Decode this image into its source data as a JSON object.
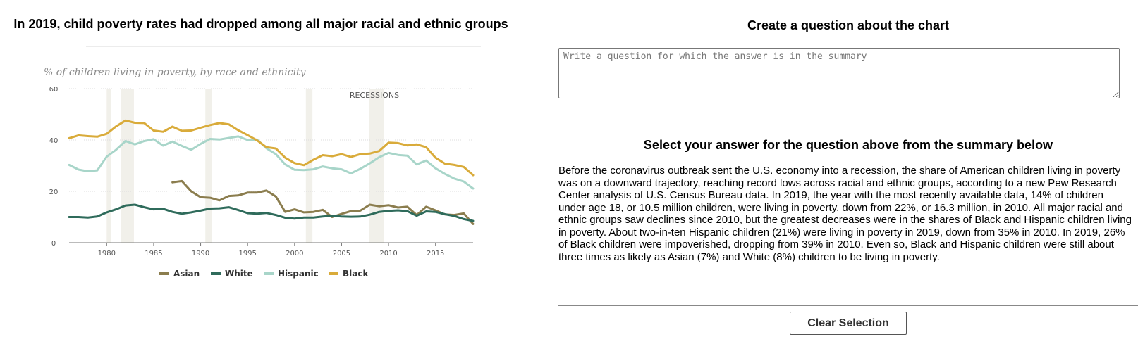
{
  "left_panel": {
    "title": "In 2019, child poverty rates had dropped among all major racial and ethnic groups"
  },
  "right_panel": {
    "question_title": "Create a question about the chart",
    "question_placeholder": "Write a question for which the answer is in the summary",
    "answer_title": "Select your answer for the question above from the summary below",
    "summary": "Before the coronavirus outbreak sent the U.S. economy into a recession, the share of American children living in poverty was on a downward trajectory, reaching record lows across racial and ethnic groups, according to a new Pew Research Center analysis of U.S. Census Bureau data. In 2019, the year with the most recently available data, 14% of children under age 18, or 10.5 million children, were living in poverty, down from 22%, or 16.3 million, in 2010. All major racial and ethnic groups saw declines since 2010, but the greatest decreases were in the shares of Black and Hispanic children living in poverty. About two-in-ten Hispanic children (21%) were living in poverty in 2019, down from 35% in 2010. In 2019, 26% of Black children were impoverished, dropping from 39% in 2010. Even so, Black and Hispanic children were still about three times as likely as Asian (7%) and White (8%) children to be living in poverty.",
    "clear_label": "Clear Selection"
  },
  "chart_data": {
    "type": "line",
    "subtitle": "% of children living in poverty, by race and ethnicity",
    "annotation": "RECESSIONS",
    "xlim": [
      1976,
      2019
    ],
    "ylim": [
      0,
      60
    ],
    "yticks": [
      0,
      20,
      40,
      60
    ],
    "xticks": [
      1980,
      1985,
      1990,
      1995,
      2000,
      2005,
      2010,
      2015
    ],
    "recessions": [
      [
        1980,
        1980.5
      ],
      [
        1981.5,
        1982.9
      ],
      [
        1990.5,
        1991.2
      ],
      [
        2001.2,
        2001.9
      ],
      [
        2007.9,
        2009.5
      ]
    ],
    "legend": "bottom",
    "series": [
      {
        "name": "Asian",
        "color": "#8b7d4e",
        "x": [
          1987,
          1988,
          1989,
          1990,
          1991,
          1992,
          1993,
          1994,
          1995,
          1996,
          1997,
          1998,
          1999,
          2000,
          2001,
          2002,
          2003,
          2004,
          2005,
          2006,
          2007,
          2008,
          2009,
          2010,
          2011,
          2012,
          2013,
          2014,
          2015,
          2016,
          2017,
          2018,
          2019
        ],
        "values": [
          23.5,
          24,
          20,
          17.7,
          17.5,
          16.5,
          18.2,
          18.4,
          19.5,
          19.5,
          20.3,
          18,
          12,
          13,
          11.8,
          12,
          12.8,
          10,
          11.2,
          12.3,
          12.5,
          14.8,
          14.2,
          14.6,
          13.7,
          14,
          10.8,
          14,
          12.6,
          11,
          10.8,
          11.4,
          7.3
        ]
      },
      {
        "name": "White",
        "color": "#2f6b5b",
        "x": [
          1976,
          1977,
          1978,
          1979,
          1980,
          1981,
          1982,
          1983,
          1984,
          1985,
          1986,
          1987,
          1988,
          1989,
          1990,
          1991,
          1992,
          1993,
          1994,
          1995,
          1996,
          1997,
          1998,
          1999,
          2000,
          2001,
          2002,
          2003,
          2004,
          2005,
          2006,
          2007,
          2008,
          2009,
          2010,
          2011,
          2012,
          2013,
          2014,
          2015,
          2016,
          2017,
          2018,
          2019
        ],
        "values": [
          10,
          10,
          9.8,
          10.2,
          11.8,
          13,
          14.5,
          14.8,
          13.8,
          13,
          13.2,
          12,
          11.3,
          11.8,
          12.5,
          13.3,
          13.4,
          13.8,
          12.7,
          11.5,
          11.3,
          11.6,
          10.8,
          9.7,
          9.4,
          9.8,
          9.8,
          10.2,
          10.5,
          10.2,
          10.1,
          10.2,
          10.9,
          12,
          12.4,
          12.6,
          12.3,
          10.5,
          12.2,
          12,
          11.1,
          10.4,
          9.2,
          8.5
        ]
      },
      {
        "name": "Hispanic",
        "color": "#a8d5c9",
        "x": [
          1976,
          1977,
          1978,
          1979,
          1980,
          1981,
          1982,
          1983,
          1984,
          1985,
          1986,
          1987,
          1988,
          1989,
          1990,
          1991,
          1992,
          1993,
          1994,
          1995,
          1996,
          1997,
          1998,
          1999,
          2000,
          2001,
          2002,
          2003,
          2004,
          2005,
          2006,
          2007,
          2008,
          2009,
          2010,
          2011,
          2012,
          2013,
          2014,
          2015,
          2016,
          2017,
          2018,
          2019
        ],
        "values": [
          30.3,
          28.5,
          27.8,
          28.2,
          33.5,
          36.2,
          39.6,
          38.3,
          39.6,
          40.3,
          37.8,
          39.4,
          37.7,
          36.2,
          38.5,
          40.4,
          40.2,
          40.8,
          41.4,
          40,
          40.2,
          36.8,
          34.5,
          30.5,
          28.4,
          28.3,
          28.6,
          29.7,
          29,
          28.6,
          27,
          28.8,
          30.9,
          33.3,
          35,
          34.2,
          33.9,
          30.5,
          32,
          29,
          26.8,
          25,
          23.8,
          21.1
        ]
      },
      {
        "name": "Black",
        "color": "#d9ab3a",
        "x": [
          1976,
          1977,
          1978,
          1979,
          1980,
          1981,
          1982,
          1983,
          1984,
          1985,
          1986,
          1987,
          1988,
          1989,
          1990,
          1991,
          1992,
          1993,
          1994,
          1995,
          1996,
          1997,
          1998,
          1999,
          2000,
          2001,
          2002,
          2003,
          2004,
          2005,
          2006,
          2007,
          2008,
          2009,
          2010,
          2011,
          2012,
          2013,
          2014,
          2015,
          2016,
          2017,
          2018,
          2019
        ],
        "values": [
          40.7,
          41.8,
          41.5,
          41.3,
          42.4,
          45.3,
          47.6,
          46.7,
          46.6,
          43.7,
          43.2,
          45.2,
          43.6,
          43.7,
          44.8,
          45.8,
          46.6,
          46.1,
          43.8,
          41.9,
          39.9,
          37.2,
          36.7,
          33.1,
          31,
          30.2,
          32.3,
          34.1,
          33.7,
          34.5,
          33.4,
          34.5,
          34.7,
          35.7,
          39,
          38.8,
          37.9,
          38.3,
          37.2,
          33.1,
          30.8,
          30.3,
          29.5,
          26.3
        ]
      }
    ]
  }
}
